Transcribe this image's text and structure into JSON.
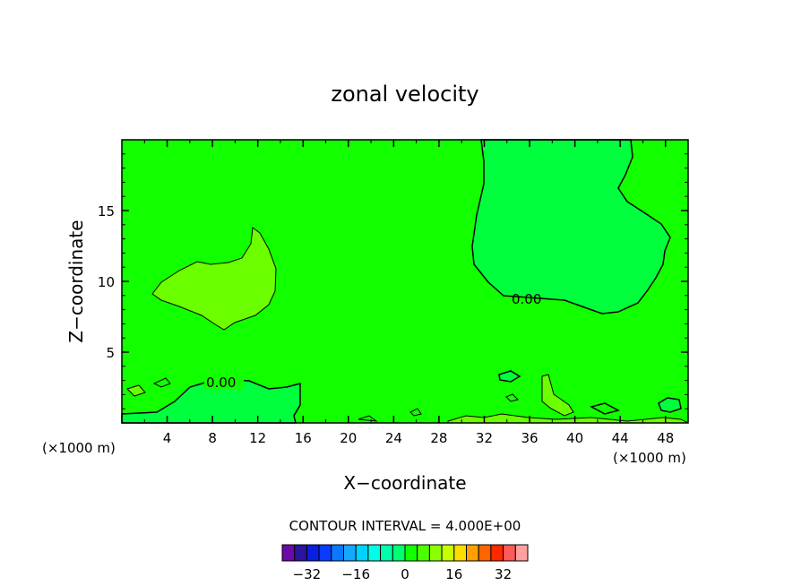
{
  "chart_data": {
    "type": "heatmap",
    "title": "zonal velocity",
    "xlabel": "X−coordinate",
    "ylabel": "Z−coordinate",
    "x_unit": "(×1000 m)",
    "xlim": [
      0,
      50
    ],
    "ylim": [
      0,
      20
    ],
    "x_ticks": [
      "4",
      "8",
      "12",
      "16",
      "20",
      "24",
      "28",
      "32",
      "36",
      "40",
      "44",
      "48"
    ],
    "y_ticks": [
      "5",
      "10",
      "15"
    ],
    "contour_labels": [
      "0.00",
      "0.00"
    ],
    "contour_interval_text": "CONTOUR INTERVAL = 4.000E+00",
    "background_color": "#12ff00",
    "colorbar": {
      "levels": [
        -36,
        -32,
        -28,
        -24,
        -20,
        -16,
        -12,
        -8,
        -4,
        0,
        4,
        8,
        12,
        16,
        20,
        24,
        28,
        32,
        36
      ],
      "tick_labels": [
        "−32",
        "−16",
        "0",
        "16",
        "32"
      ],
      "colors": [
        "#6a0aa8",
        "#2a14a0",
        "#0a1ee0",
        "#0a3cff",
        "#0a78ff",
        "#14a8ff",
        "#00d2ff",
        "#00ffe6",
        "#00ffaa",
        "#00ff6e",
        "#12ff00",
        "#4cff00",
        "#8cff00",
        "#c8ff00",
        "#ffdc00",
        "#ffa000",
        "#ff6400",
        "#ff2800",
        "#ff5a5a",
        "#ffa0a0"
      ]
    },
    "regions": [
      {
        "name": "negative-region-upper-right",
        "color": "#00ff3c"
      },
      {
        "name": "positive-region-left",
        "color": "#6cff00"
      },
      {
        "name": "negative-region-bottom",
        "color": "#00ff3c"
      }
    ]
  }
}
